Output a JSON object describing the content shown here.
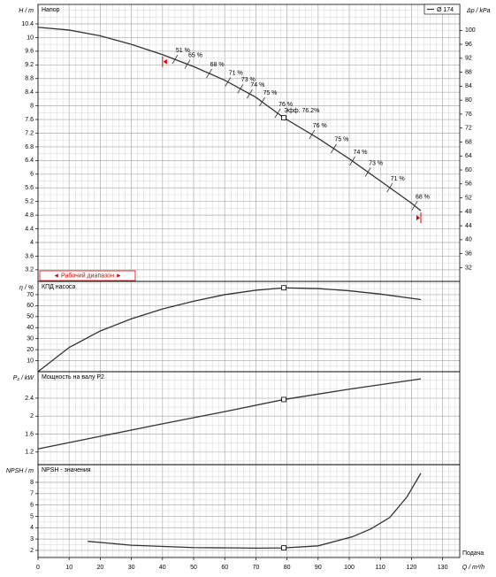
{
  "chart_data": [
    {
      "type": "line",
      "title": "Напор",
      "ylabel": "H / m",
      "y2label": "Δp / kPa",
      "xlim": [
        0,
        135.5
      ],
      "ylim": [
        2.86,
        10.97
      ],
      "yticks": [
        3.2,
        3.6,
        4,
        4.4,
        4.8,
        5.2,
        5.6,
        6,
        6.4,
        6.8,
        7.2,
        7.6,
        8,
        8.4,
        8.8,
        9.2,
        9.6,
        10,
        10.4
      ],
      "y2lim": [
        28.05,
        107.43
      ],
      "y2ticks": [
        32,
        36,
        40,
        44,
        48,
        52,
        56,
        60,
        64,
        68,
        72,
        76,
        80,
        84,
        88,
        92,
        96,
        100
      ],
      "x": [
        0,
        10,
        20,
        30,
        40,
        50,
        60,
        70,
        79,
        90,
        100,
        110,
        120,
        123
      ],
      "series": [
        {
          "name": "Ø 174",
          "color": "#333333",
          "values": [
            10.3,
            10.22,
            10.05,
            9.8,
            9.5,
            9.15,
            8.75,
            8.25,
            7.65,
            7.05,
            6.45,
            5.8,
            5.15,
            4.93
          ]
        }
      ],
      "marker": {
        "x": 79,
        "y": 7.65,
        "label": "Эфф. 76.2%"
      },
      "efficiency_marks": [
        {
          "x": 44,
          "label": "51 %"
        },
        {
          "x": 48,
          "label": "65 %"
        },
        {
          "x": 55,
          "label": "68 %"
        },
        {
          "x": 61,
          "label": "71 %"
        },
        {
          "x": 65,
          "label": "73 %"
        },
        {
          "x": 68,
          "label": "74 %"
        },
        {
          "x": 72,
          "label": "75 %"
        },
        {
          "x": 77,
          "label": "76 %"
        },
        {
          "x": 88,
          "label": "76 %"
        },
        {
          "x": 95,
          "label": "75 %"
        },
        {
          "x": 101,
          "label": "74 %"
        },
        {
          "x": 106,
          "label": "73 %"
        },
        {
          "x": 113,
          "label": "71 %"
        },
        {
          "x": 121,
          "label": "68 %"
        }
      ],
      "operating_range": {
        "label": "◄ Рабочий диапазон ►",
        "x": [
          40,
          123
        ],
        "color": "#e00000"
      },
      "grid": true,
      "legend": "upper right"
    },
    {
      "type": "line",
      "title": "КПД насоса",
      "ylabel": "η / %",
      "xlim": [
        0,
        135.5
      ],
      "ylim": [
        0,
        82
      ],
      "yticks": [
        10,
        20,
        30,
        40,
        50,
        60,
        70
      ],
      "x": [
        0,
        10,
        20,
        30,
        40,
        50,
        60,
        70,
        79,
        90,
        100,
        110,
        123
      ],
      "values": [
        0,
        22,
        37,
        48,
        57,
        64,
        70,
        74,
        76.2,
        75.5,
        73.5,
        70.5,
        65.5
      ],
      "color": "#333333",
      "marker": {
        "x": 79,
        "y": 76.2
      },
      "grid": true
    },
    {
      "type": "line",
      "title": "Мощность на валу P2",
      "ylabel": "P₂ / kW",
      "xlim": [
        0,
        135.5
      ],
      "ylim": [
        0.92,
        2.99
      ],
      "yticks": [
        1.2,
        1.6,
        2,
        2.4
      ],
      "x": [
        0,
        20,
        40,
        60,
        79,
        100,
        123
      ],
      "values": [
        1.27,
        1.55,
        1.83,
        2.1,
        2.37,
        2.6,
        2.83
      ],
      "color": "#333333",
      "marker": {
        "x": 79,
        "y": 2.37
      },
      "grid": true
    },
    {
      "type": "line",
      "title": "NPSH - значения",
      "ylabel": "NPSH / m",
      "xlabel": "Q / m³/h",
      "xnote": "Подача",
      "xlim": [
        0,
        135.5
      ],
      "ylim": [
        1.37,
        9.56
      ],
      "yticks": [
        2,
        3,
        4,
        5,
        6,
        7,
        8
      ],
      "xticks": [
        0,
        10,
        20,
        30,
        40,
        50,
        60,
        70,
        80,
        90,
        100,
        110,
        120,
        130
      ],
      "x": [
        16,
        30,
        50,
        70,
        79,
        90,
        101,
        107,
        113,
        118.5,
        123
      ],
      "values": [
        2.8,
        2.45,
        2.25,
        2.2,
        2.22,
        2.4,
        3.2,
        3.9,
        4.9,
        6.7,
        8.8
      ],
      "color": "#333333",
      "marker": {
        "x": 79,
        "y": 2.22
      },
      "grid": true
    }
  ]
}
